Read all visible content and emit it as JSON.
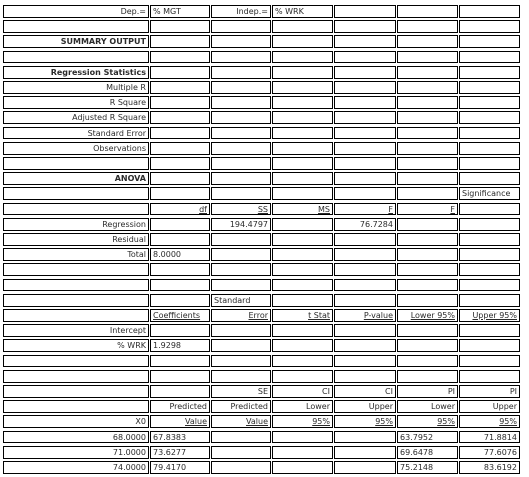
{
  "header": {
    "dep_label": "Dep.=",
    "dep_value": "% MGT",
    "indep_label": "Indep.=",
    "indep_value": "% WRK"
  },
  "summary_output": "SUMMARY OUTPUT",
  "regression_statistics": {
    "title": "Regression Statistics",
    "rows": [
      "Multiple R",
      "R Square",
      "Adjusted R Square",
      "Standard Error",
      "Observations"
    ]
  },
  "anova": {
    "title": "ANOVA",
    "significance_top": "Significance",
    "headers": {
      "df": "df",
      "ss": "SS",
      "ms": "MS",
      "f": "F",
      "sig_f": "F"
    },
    "regression": {
      "label": "Regression",
      "ss": "194.4797",
      "f": "76.7284"
    },
    "residual": {
      "label": "Residual"
    },
    "total": {
      "label": "Total",
      "df": "8.0000"
    }
  },
  "coefficients": {
    "standard_top": "Standard",
    "headers": {
      "coef": "Coefficients",
      "error": "Error",
      "tstat": "t Stat",
      "pvalue": "P-value",
      "lower": "Lower 95%",
      "upper": "Upper 95%"
    },
    "intercept": {
      "label": "Intercept"
    },
    "slope": {
      "label": "% WRK",
      "coef": "1.9298"
    }
  },
  "prediction": {
    "h1": {
      "se": "SE",
      "cil": "CI",
      "ciu": "CI",
      "pil": "PI",
      "piu": "PI"
    },
    "h2": {
      "pred": "Predicted",
      "se": "Predicted",
      "cil": "Lower",
      "ciu": "Upper",
      "pil": "Lower",
      "piu": "Upper"
    },
    "h3": {
      "x": "X0",
      "pred": "Value",
      "se": "Value",
      "cil": "95%",
      "ciu": "95%",
      "pil": "95%",
      "piu": "95%"
    },
    "rows": [
      {
        "x": "68.0000",
        "pred": "67.8383",
        "pil": "63.7952",
        "piu": "71.8814"
      },
      {
        "x": "71.0000",
        "pred": "73.6277",
        "pil": "69.6478",
        "piu": "77.6076"
      },
      {
        "x": "74.0000",
        "pred": "79.4170",
        "pil": "75.2148",
        "piu": "83.6192"
      }
    ]
  }
}
